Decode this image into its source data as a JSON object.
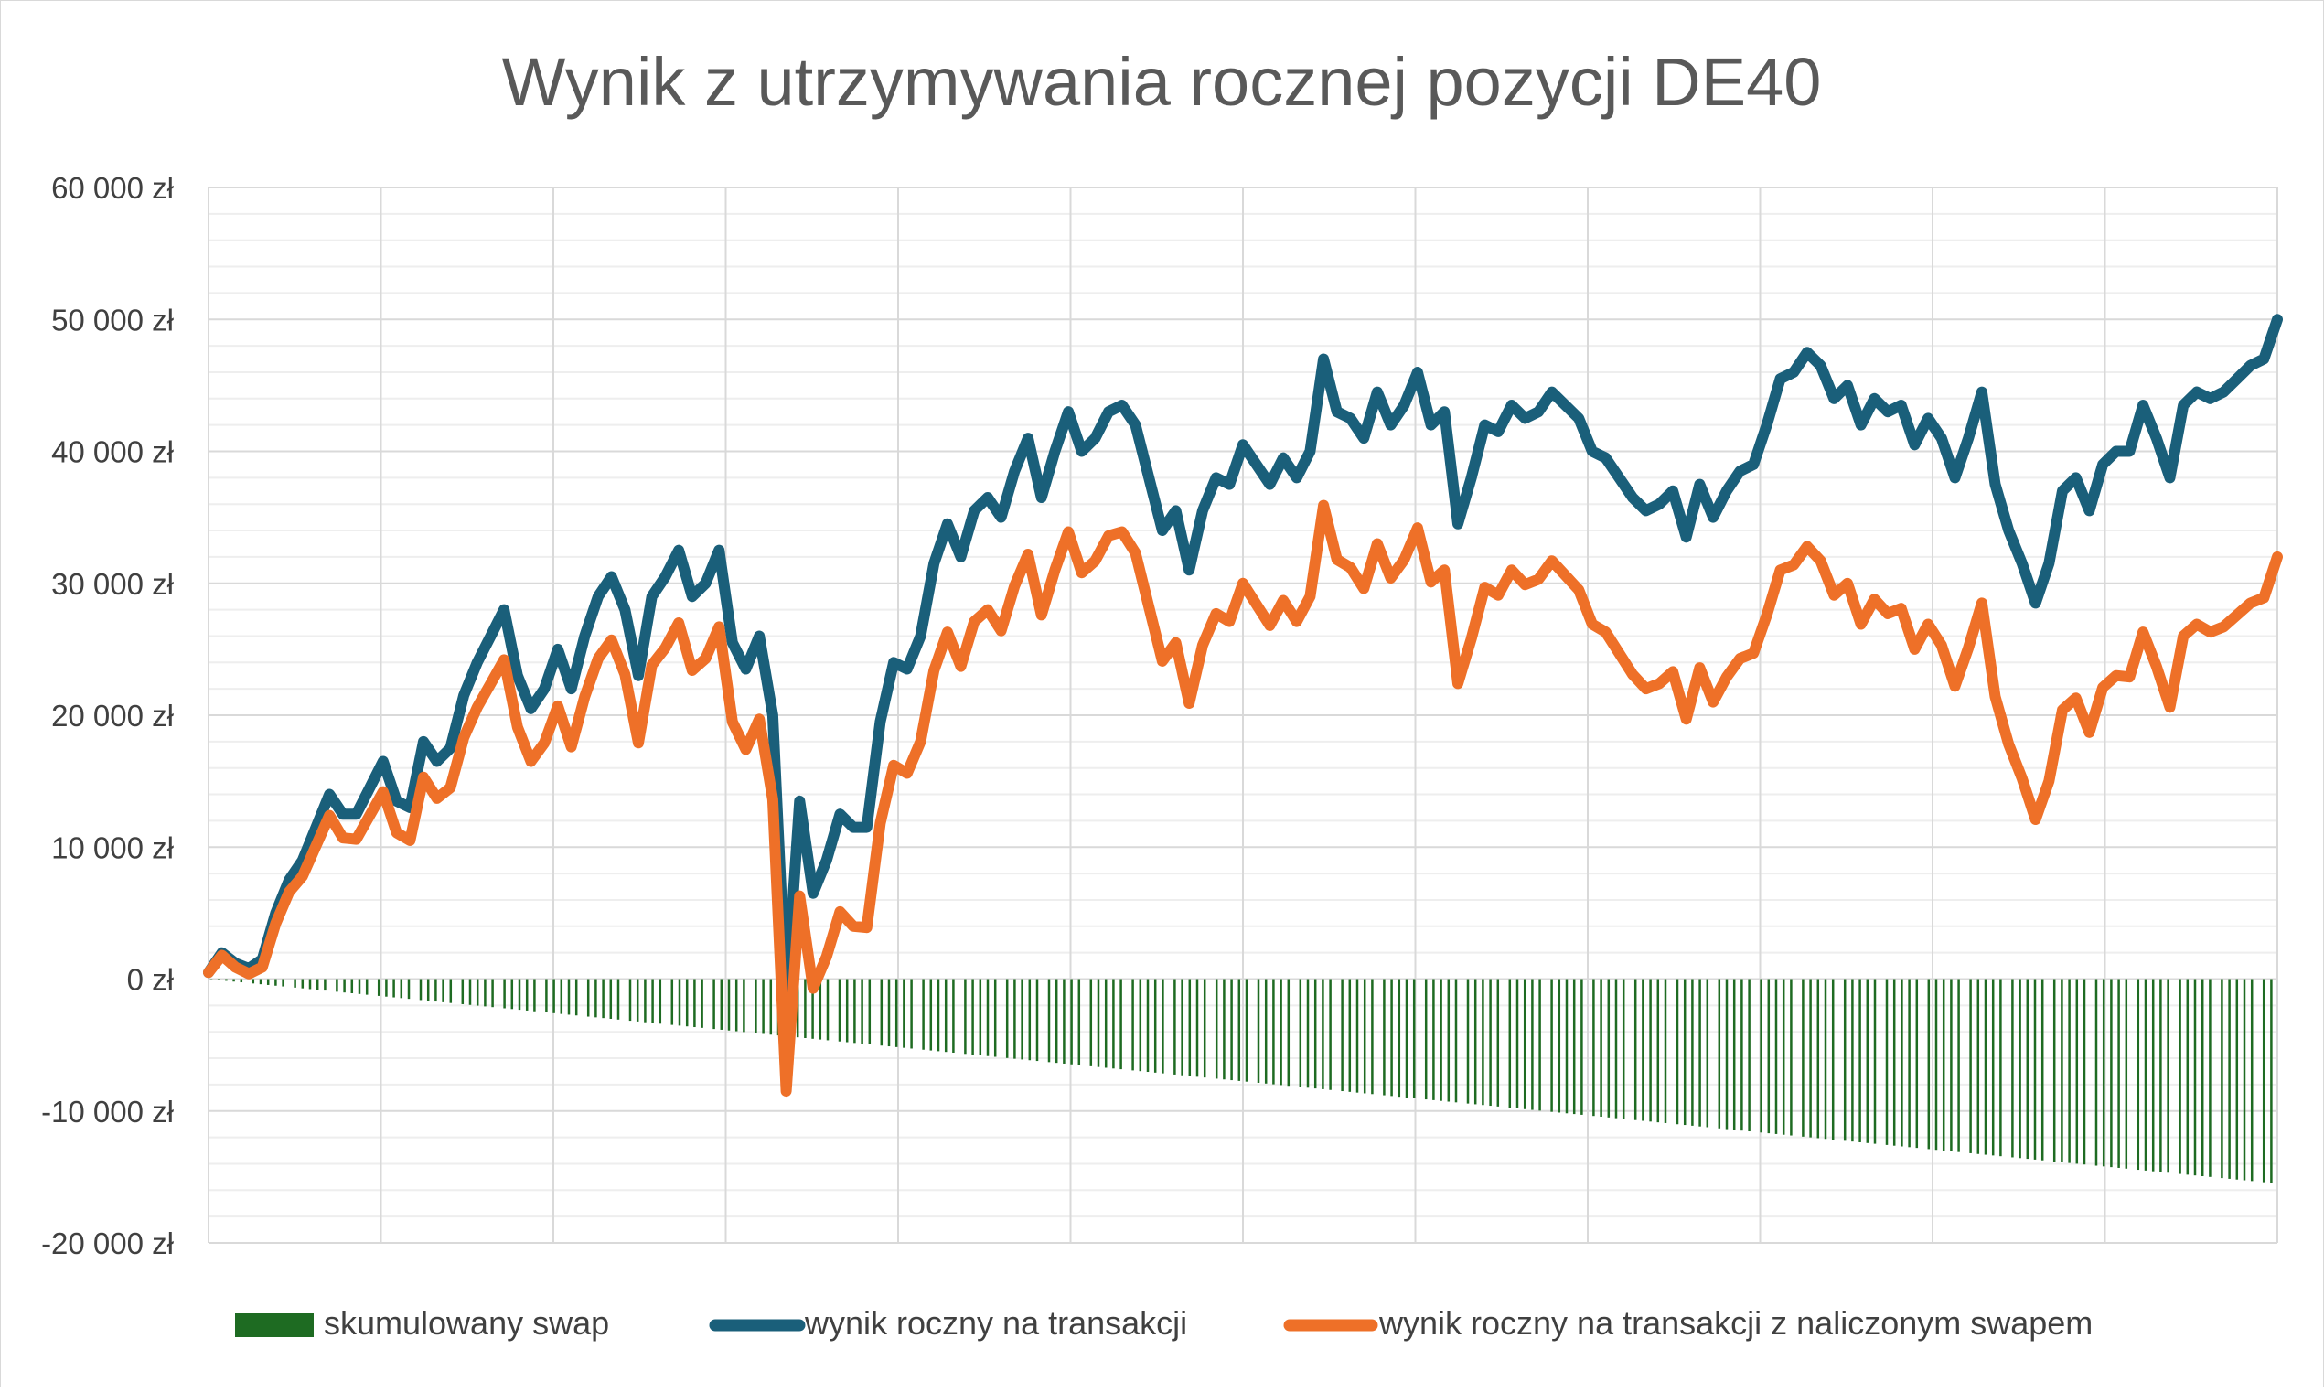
{
  "chart_data": {
    "type": "line",
    "title": "Wynik z utrzymywania rocznej pozycji DE40",
    "xlabel": "",
    "ylabel": "",
    "ylim": [
      -20000,
      60000
    ],
    "y_ticks": [
      -20000,
      -10000,
      0,
      10000,
      20000,
      30000,
      40000,
      50000,
      60000
    ],
    "y_tick_labels": [
      "-20 000 zł",
      "-10 000 zł",
      "0 zł",
      "10 000 zł",
      "20 000 zł",
      "30 000 zł",
      "40 000 zł",
      "50 000 zł",
      "60 000 zł"
    ],
    "x_major_gridlines": 12,
    "x_tick_labels": [],
    "grid": true,
    "legend_position": "bottom",
    "series": [
      {
        "name": "skumulowany swap",
        "type": "bar",
        "color": "#1e6b22",
        "description_hint": "",
        "start_value": 0,
        "end_value": -15500
      },
      {
        "name": "wynik roczny na transakcji",
        "type": "line",
        "color": "#1a5f7a",
        "values": [
          500,
          2000,
          1200,
          800,
          1500,
          5000,
          7500,
          9000,
          11500,
          14000,
          12500,
          12500,
          14500,
          16500,
          13500,
          13000,
          18000,
          16500,
          17500,
          21500,
          24000,
          26000,
          28000,
          23000,
          20500,
          22000,
          25000,
          22000,
          26000,
          29000,
          30500,
          28000,
          23000,
          29000,
          30500,
          32500,
          29000,
          30000,
          32500,
          25500,
          23500,
          26000,
          20000,
          -1500,
          13500,
          6500,
          9000,
          12500,
          11500,
          11500,
          19500,
          24000,
          23500,
          26000,
          31500,
          34500,
          32000,
          35500,
          36500,
          35000,
          38500,
          41000,
          36500,
          40000,
          43000,
          40000,
          41000,
          43000,
          43500,
          42000,
          38000,
          34000,
          35500,
          31000,
          35500,
          38000,
          37500,
          40500,
          39000,
          37500,
          39500,
          38000,
          40000,
          47000,
          43000,
          42500,
          41000,
          44500,
          42000,
          43500,
          46000,
          42000,
          43000,
          34500,
          38000,
          42000,
          41500,
          43500,
          42500,
          43000,
          44500,
          43500,
          42500,
          40000,
          39500,
          38000,
          36500,
          35500,
          36000,
          37000,
          33500,
          37500,
          35000,
          37000,
          38500,
          39000,
          42000,
          45500,
          46000,
          47500,
          46500,
          44000,
          45000,
          42000,
          44000,
          43000,
          43500,
          40500,
          42500,
          41000,
          38000,
          41000,
          44500,
          37500,
          34000,
          31500,
          28500,
          31500,
          37000,
          38000,
          35500,
          39000,
          40000,
          40000,
          43500,
          41000,
          38000,
          43500,
          44500,
          44000,
          44500,
          45500,
          46500,
          47000,
          50000
        ],
        "label_note": ""
      },
      {
        "name": "wynik roczny na transakcji z naliczonym swapem",
        "type": "line",
        "color": "#ee7028",
        "values": [
          500,
          1800,
          900,
          400,
          900,
          4200,
          6600,
          7800,
          10100,
          12400,
          10700,
          10600,
          12400,
          14200,
          11100,
          10500,
          15300,
          13700,
          14500,
          18300,
          20600,
          22400,
          24200,
          19100,
          16500,
          17900,
          20700,
          17600,
          21400,
          24300,
          25700,
          23100,
          17900,
          23800,
          25100,
          27000,
          23400,
          24300,
          26700,
          19500,
          17400,
          19700,
          13600,
          -8500,
          6300,
          -700,
          1700,
          5100,
          4000,
          3900,
          11800,
          16200,
          15600,
          18000,
          23400,
          26300,
          23700,
          27100,
          28000,
          26400,
          29800,
          32200,
          27600,
          31000,
          33900,
          30800,
          31700,
          33600,
          33900,
          32300,
          28200,
          24100,
          25500,
          20900,
          25300,
          27700,
          27100,
          30000,
          28400,
          26800,
          28700,
          27100,
          29000,
          35900,
          31800,
          31200,
          29600,
          33000,
          30400,
          31800,
          34200,
          30100,
          31000,
          22400,
          25800,
          29700,
          29100,
          31000,
          29900,
          30300,
          31700,
          30600,
          29500,
          26900,
          26300,
          24700,
          23100,
          22000,
          22400,
          23300,
          19700,
          23600,
          21000,
          22900,
          24300,
          24700,
          27600,
          31000,
          31400,
          32800,
          31700,
          29100,
          30000,
          26900,
          28800,
          27700,
          28100,
          25000,
          26900,
          25300,
          22200,
          25100,
          28500,
          21400,
          17800,
          15200,
          12100,
          15000,
          20400,
          21300,
          18700,
          22100,
          23000,
          22900,
          26300,
          23700,
          20600,
          26000,
          26900,
          26300,
          26700,
          27600,
          28500,
          28900,
          32000
        ],
        "label_note": ""
      }
    ]
  }
}
